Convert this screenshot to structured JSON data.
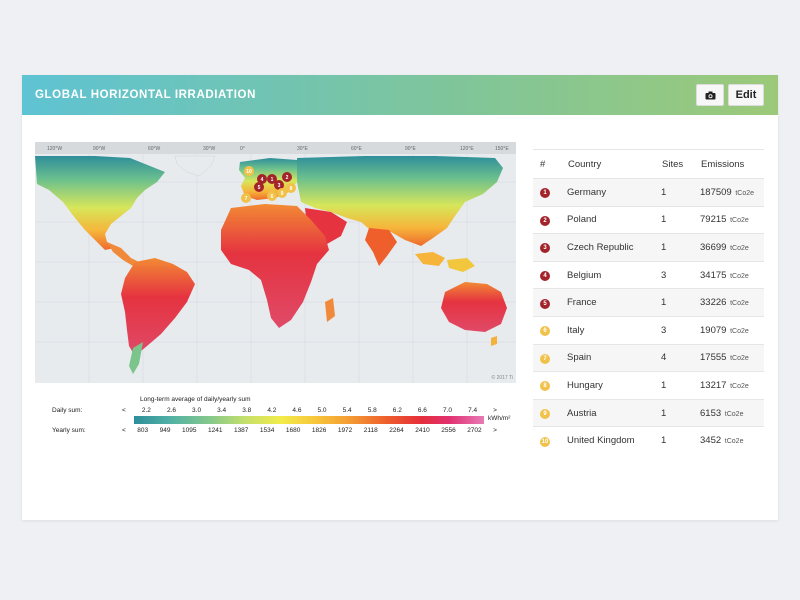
{
  "header": {
    "title": "GLOBAL HORIZONTAL IRRADIATION",
    "edit_label": "Edit",
    "camera_icon": "camera-icon"
  },
  "map": {
    "copyright": "© 2017 Ti",
    "longitude_labels": [
      "120°W",
      "90°W",
      "60°W",
      "30°W",
      "0°",
      "30°E",
      "60°E",
      "90°E",
      "120°E",
      "150°E"
    ],
    "markers": [
      {
        "rank": "1"
      },
      {
        "rank": "2"
      },
      {
        "rank": "3"
      },
      {
        "rank": "4"
      },
      {
        "rank": "5"
      },
      {
        "rank": "6"
      },
      {
        "rank": "7"
      },
      {
        "rank": "8"
      },
      {
        "rank": "9"
      },
      {
        "rank": "10"
      }
    ]
  },
  "legend": {
    "title": "Long-term average of daily/yearly sum",
    "daily_label": "Daily sum:",
    "yearly_label": "Yearly sum:",
    "unit": "kWh/m²",
    "daily_ticks": [
      "<",
      "2.2",
      "2.6",
      "3.0",
      "3.4",
      "3.8",
      "4.2",
      "4.6",
      "5.0",
      "5.4",
      "5.8",
      "6.2",
      "6.6",
      "7.0",
      "7.4",
      ">"
    ],
    "yearly_ticks": [
      "<",
      "803",
      "949",
      "1095",
      "1241",
      "1387",
      "1534",
      "1680",
      "1826",
      "1972",
      "2118",
      "2264",
      "2410",
      "2556",
      "2702",
      ">"
    ]
  },
  "table": {
    "headers": {
      "rank": "#",
      "country": "Country",
      "sites": "Sites",
      "emissions": "Emissions"
    },
    "rows": [
      {
        "rank": "1",
        "country": "Germany",
        "sites": "1",
        "emissions": "187509",
        "unit": "tCo2e",
        "color": "#a3232a"
      },
      {
        "rank": "2",
        "country": "Poland",
        "sites": "1",
        "emissions": "79215",
        "unit": "tCo2e",
        "color": "#a3232a"
      },
      {
        "rank": "3",
        "country": "Czech Republic",
        "sites": "1",
        "emissions": "36699",
        "unit": "tCo2e",
        "color": "#a3232a"
      },
      {
        "rank": "4",
        "country": "Belgium",
        "sites": "3",
        "emissions": "34175",
        "unit": "tCo2e",
        "color": "#a3232a"
      },
      {
        "rank": "5",
        "country": "France",
        "sites": "1",
        "emissions": "33226",
        "unit": "tCo2e",
        "color": "#a3232a"
      },
      {
        "rank": "6",
        "country": "Italy",
        "sites": "3",
        "emissions": "19079",
        "unit": "tCo2e",
        "color": "#f1c24a"
      },
      {
        "rank": "7",
        "country": "Spain",
        "sites": "4",
        "emissions": "17555",
        "unit": "tCo2e",
        "color": "#f1c24a"
      },
      {
        "rank": "8",
        "country": "Hungary",
        "sites": "1",
        "emissions": "13217",
        "unit": "tCo2e",
        "color": "#f1c24a"
      },
      {
        "rank": "9",
        "country": "Austria",
        "sites": "1",
        "emissions": "6153",
        "unit": "tCo2e",
        "color": "#f1c24a"
      },
      {
        "rank": "10",
        "country": "United Kingdom",
        "sites": "1",
        "emissions": "3452",
        "unit": "tCo2e",
        "color": "#f1c24a"
      }
    ]
  }
}
